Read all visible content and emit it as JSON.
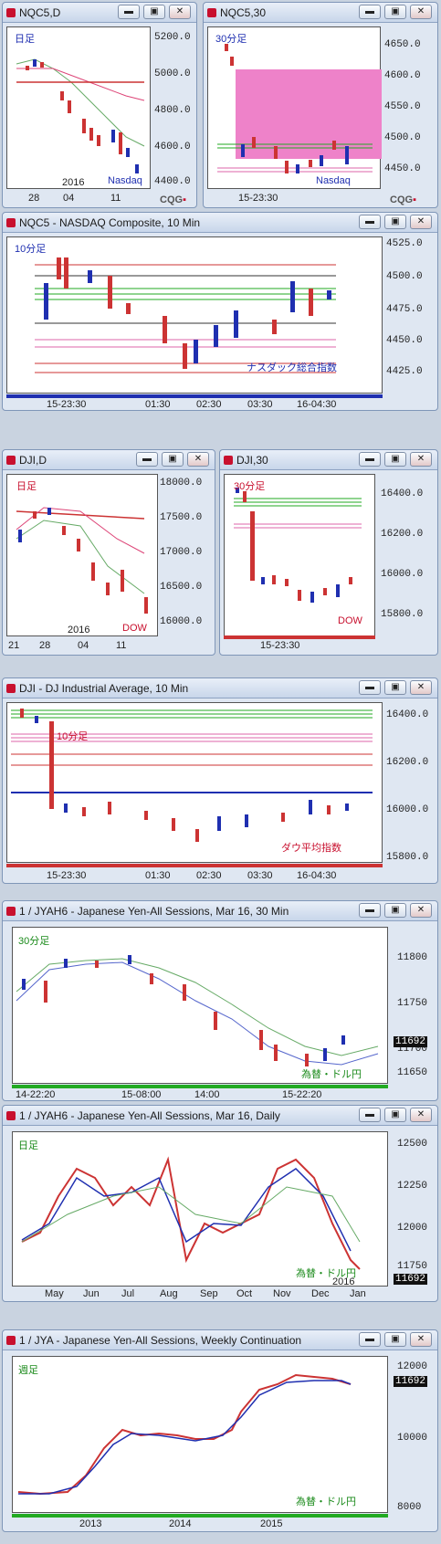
{
  "price_label": "11692",
  "cqg_brand": "CQG",
  "windows": [
    {
      "title": "NQC5,D",
      "tag": "日足",
      "tag_color": "#1f2fb0",
      "foot": "Nasdaq",
      "foot_color": "#1f2fb0",
      "yticks": [
        "5200.0",
        "5000.0",
        "4800.0",
        "4600.0",
        "4400.0"
      ],
      "xticks": [
        "28",
        "04",
        "11"
      ],
      "year": "2016"
    },
    {
      "title": "NQC5,30",
      "tag": "30分足",
      "tag_color": "#1f2fb0",
      "foot": "Nasdaq",
      "foot_color": "#1f2fb0",
      "yticks": [
        "4650.0",
        "4600.0",
        "4550.0",
        "4500.0",
        "4450.0"
      ],
      "xticks": [
        "15-23:30"
      ]
    },
    {
      "title": "NQC5 - NASDAQ Composite, 10 Min",
      "tag": "10分足",
      "tag_color": "#1f2fb0",
      "foot": "ナスダック総合指数",
      "foot_color": "#1f2fb0",
      "yticks": [
        "4525.0",
        "4500.0",
        "4475.0",
        "4450.0",
        "4425.0"
      ],
      "xticks": [
        "15-23:30",
        "01:30",
        "02:30",
        "03:30",
        "16-04:30"
      ]
    },
    {
      "title": "DJI,D",
      "tag": "日足",
      "tag_color": "#c8102e",
      "foot": "DOW",
      "foot_color": "#c8102e",
      "yticks": [
        "18000.0",
        "17500.0",
        "17000.0",
        "16500.0",
        "16000.0"
      ],
      "xticks": [
        "21",
        "28",
        "04",
        "11"
      ],
      "year": "2016"
    },
    {
      "title": "DJI,30",
      "tag": "30分足",
      "tag_color": "#c8102e",
      "foot": "DOW",
      "foot_color": "#c8102e",
      "yticks": [
        "16400.0",
        "16200.0",
        "16000.0",
        "15800.0"
      ],
      "xticks": [
        "15-23:30"
      ]
    },
    {
      "title": "DJI - DJ Industrial Average, 10 Min",
      "tag": "10分足",
      "tag_color": "#c8102e",
      "foot": "ダウ平均指数",
      "foot_color": "#c8102e",
      "yticks": [
        "16400.0",
        "16200.0",
        "16000.0",
        "15800.0"
      ],
      "xticks": [
        "15-23:30",
        "01:30",
        "02:30",
        "03:30",
        "16-04:30"
      ]
    },
    {
      "title": "1 / JYAH6 - Japanese Yen-All Sessions, Mar 16, 30 Min",
      "tag": "30分足",
      "tag_color": "#1a8a1a",
      "foot": "為替・ドル円",
      "foot_color": "#1a8a1a",
      "yticks": [
        "11800",
        "11750",
        "11700",
        "11650"
      ],
      "xticks": [
        "14-22:20",
        "15-08:00",
        "14:00",
        "15-22:20"
      ]
    },
    {
      "title": "1 / JYAH6 - Japanese Yen-All Sessions, Mar 16, Daily",
      "tag": "日足",
      "tag_color": "#1a8a1a",
      "foot": "為替・ドル円",
      "foot_color": "#1a8a1a",
      "yticks": [
        "12500",
        "12250",
        "12000",
        "11750"
      ],
      "xticks": [
        "May",
        "Jun",
        "Jul",
        "Aug",
        "Sep",
        "Oct",
        "Nov",
        "Dec",
        "Jan"
      ],
      "year": "2016"
    },
    {
      "title": "1 / JYA - Japanese Yen-All Sessions, Weekly Continuation",
      "tag": "週足",
      "tag_color": "#1a8a1a",
      "foot": "為替・ドル円",
      "foot_color": "#1a8a1a",
      "yticks": [
        "12000",
        "10000",
        "8000"
      ],
      "xticks": [
        "2013",
        "2014",
        "2015"
      ]
    }
  ]
}
